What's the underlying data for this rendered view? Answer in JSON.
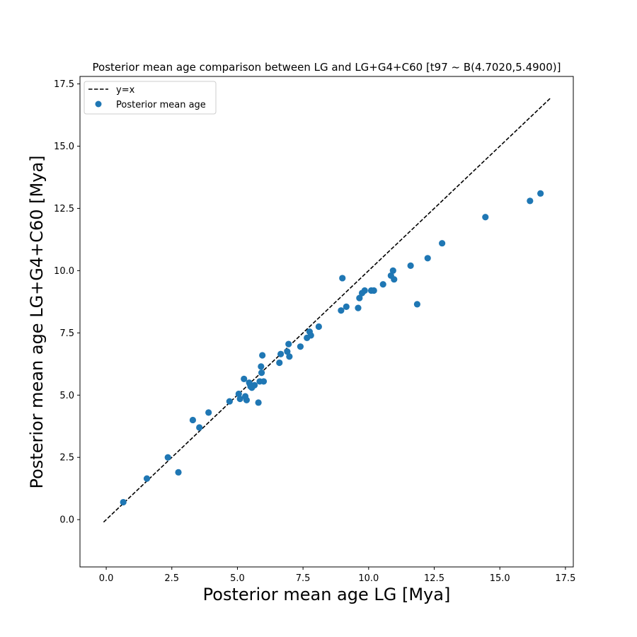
{
  "chart_data": {
    "type": "scatter",
    "title": "Posterior mean age comparison between LG and LG+G4+C60 [t97 ~ B(4.7020,5.4900)]",
    "xlabel": "Posterior mean age LG [Mya]",
    "ylabel": "Posterior mean age LG+G4+C60 [Mya]",
    "xlim": [
      -1.0,
      17.8
    ],
    "ylim": [
      -1.9,
      17.8
    ],
    "xticks": [
      "0.0",
      "2.5",
      "5.0",
      "7.5",
      "10.0",
      "12.5",
      "15.0",
      "17.5"
    ],
    "yticks": [
      "0.0",
      "2.5",
      "5.0",
      "7.5",
      "10.0",
      "12.5",
      "15.0",
      "17.5"
    ],
    "grid": false,
    "legend_position": "top-left",
    "colors": {
      "points": "#1f77b4",
      "reference_line": "#000000"
    },
    "reference_line": {
      "name": "y=x",
      "style": "dashed",
      "from": [
        -0.1,
        -0.1
      ],
      "to": [
        16.95,
        16.95
      ]
    },
    "series": [
      {
        "name": "Posterior mean age",
        "points": [
          [
            0.65,
            0.7
          ],
          [
            1.55,
            1.65
          ],
          [
            2.35,
            2.5
          ],
          [
            2.75,
            1.9
          ],
          [
            3.3,
            4.0
          ],
          [
            3.55,
            3.7
          ],
          [
            3.9,
            4.3
          ],
          [
            4.7,
            4.75
          ],
          [
            5.05,
            5.05
          ],
          [
            5.1,
            4.85
          ],
          [
            5.25,
            5.65
          ],
          [
            5.3,
            4.95
          ],
          [
            5.35,
            4.8
          ],
          [
            5.45,
            5.5
          ],
          [
            5.5,
            5.35
          ],
          [
            5.55,
            5.3
          ],
          [
            5.65,
            5.4
          ],
          [
            5.8,
            4.7
          ],
          [
            5.85,
            5.55
          ],
          [
            5.9,
            6.15
          ],
          [
            5.92,
            5.9
          ],
          [
            5.95,
            6.6
          ],
          [
            6.0,
            5.55
          ],
          [
            6.6,
            6.3
          ],
          [
            6.65,
            6.65
          ],
          [
            6.9,
            6.75
          ],
          [
            6.95,
            7.05
          ],
          [
            6.98,
            6.55
          ],
          [
            7.4,
            6.95
          ],
          [
            7.65,
            7.3
          ],
          [
            7.75,
            7.55
          ],
          [
            7.8,
            7.4
          ],
          [
            8.1,
            7.75
          ],
          [
            8.95,
            8.4
          ],
          [
            9.0,
            9.7
          ],
          [
            9.15,
            8.55
          ],
          [
            9.6,
            8.5
          ],
          [
            9.65,
            8.9
          ],
          [
            9.75,
            9.1
          ],
          [
            9.85,
            9.2
          ],
          [
            10.1,
            9.2
          ],
          [
            10.2,
            9.2
          ],
          [
            10.55,
            9.45
          ],
          [
            10.85,
            9.8
          ],
          [
            10.93,
            10.0
          ],
          [
            10.97,
            9.65
          ],
          [
            11.6,
            10.2
          ],
          [
            11.85,
            8.65
          ],
          [
            12.25,
            10.5
          ],
          [
            12.8,
            11.1
          ],
          [
            14.45,
            12.15
          ],
          [
            16.15,
            12.8
          ],
          [
            16.55,
            13.1
          ]
        ]
      }
    ]
  }
}
